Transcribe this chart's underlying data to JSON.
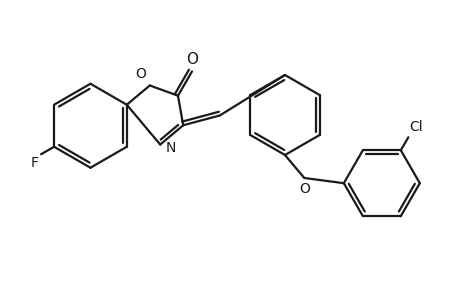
{
  "bg_color": "#ffffff",
  "line_color": "#1a1a1a",
  "line_width": 1.6,
  "font_size": 10,
  "figsize": [
    4.6,
    3.0
  ],
  "dpi": 100,
  "xlim": [
    0,
    4.6
  ],
  "ylim": [
    0,
    3.0
  ]
}
